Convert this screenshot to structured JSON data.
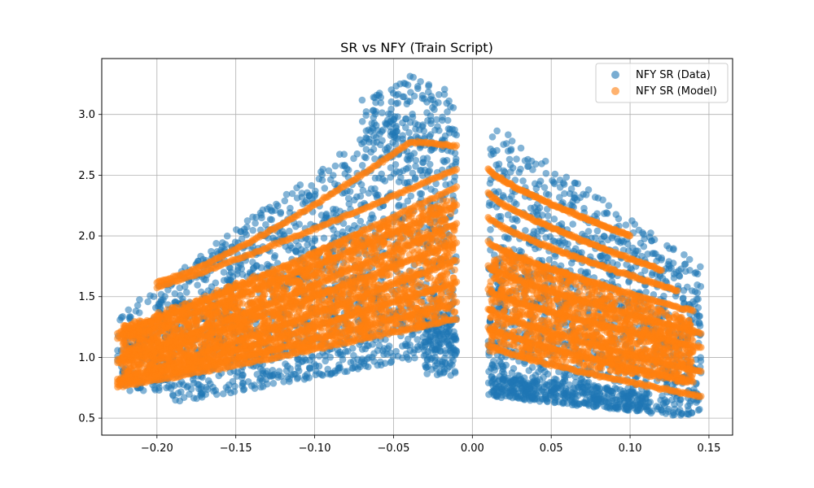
{
  "chart_data": {
    "type": "scatter",
    "title": "SR vs NFY (Train Script)",
    "xlabel": "",
    "ylabel": "",
    "xlim": [
      -0.235,
      0.165
    ],
    "ylim": [
      0.36,
      3.46
    ],
    "grid": true,
    "legend_position": "top-right",
    "x_ticks": [
      -0.2,
      -0.15,
      -0.1,
      -0.05,
      0.0,
      0.05,
      0.1,
      0.15
    ],
    "x_tick_labels": [
      "−0.20",
      "−0.15",
      "−0.10",
      "−0.05",
      "0.00",
      "0.05",
      "0.10",
      "0.15"
    ],
    "y_ticks": [
      0.5,
      1.0,
      1.5,
      2.0,
      2.5,
      3.0
    ],
    "y_tick_labels": [
      "0.5",
      "1.0",
      "1.5",
      "2.0",
      "2.5",
      "3.0"
    ],
    "series": [
      {
        "name": "NFY SR (Data)",
        "color": "#1f77b4",
        "alpha": 0.55,
        "x_range_neg": [
          -0.225,
          -0.01
        ],
        "x_range_pos": [
          0.01,
          0.145
        ],
        "y_range": [
          0.5,
          3.35
        ]
      },
      {
        "name": "NFY SR (Model)",
        "color": "#ff7f0e",
        "alpha": 0.55,
        "x_range_neg": [
          -0.225,
          -0.01
        ],
        "x_range_pos": [
          0.01,
          0.145
        ],
        "y_range": [
          0.68,
          2.82
        ]
      }
    ]
  }
}
